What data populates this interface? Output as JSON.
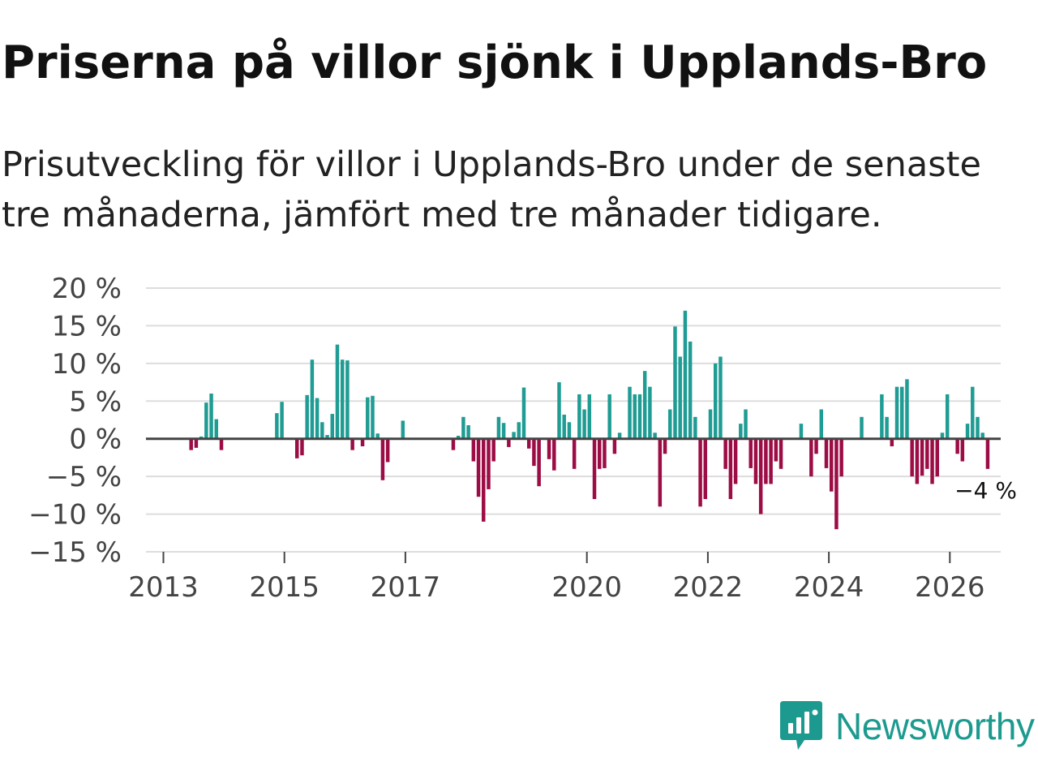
{
  "title": "Priserna på villor sjönk i Upplands-Bro",
  "subtitle": "Prisutveckling för villor i Upplands-Bro under de senaste tre månaderna, jämfört med tre månader tidigare.",
  "brand": {
    "name": "Newsworthy",
    "icon": "newsworthy-logo-icon",
    "color": "#1d9a8f"
  },
  "colors": {
    "positive": "#1f9c93",
    "negative": "#9c0c45",
    "grid": "#dddddd",
    "zero_line": "#444444"
  },
  "chart_data": {
    "type": "bar",
    "title": "Priserna på villor sjönk i Upplands-Bro",
    "xlabel": "",
    "ylabel": "",
    "ylim": [
      -15,
      20
    ],
    "yticks": [
      20,
      15,
      10,
      5,
      0,
      -5,
      -10,
      -15
    ],
    "ytick_labels": [
      "20 %",
      "15 %",
      "10 %",
      "5 %",
      "0 %",
      "−5 %",
      "−10 %",
      "−15 %"
    ],
    "xticks": [
      2013,
      2015,
      2017,
      2020,
      2022,
      2024,
      2026
    ],
    "xtick_labels": [
      "2013",
      "2015",
      "2017",
      "2020",
      "2022",
      "2024",
      "2026"
    ],
    "grid": true,
    "start": {
      "year": 2013,
      "month": 1
    },
    "values": [
      null,
      null,
      null,
      null,
      null,
      -1.5,
      -1.2,
      0.3,
      4.8,
      6.0,
      2.6,
      -1.5,
      null,
      null,
      null,
      null,
      null,
      null,
      null,
      null,
      null,
      null,
      3.4,
      4.9,
      null,
      null,
      -2.6,
      -2.2,
      5.8,
      10.5,
      5.4,
      2.2,
      0.5,
      3.3,
      12.5,
      10.5,
      10.4,
      -1.5,
      null,
      -1.0,
      5.5,
      5.7,
      0.7,
      -5.5,
      -3.1,
      null,
      null,
      2.4,
      null,
      null,
      null,
      null,
      null,
      null,
      null,
      null,
      null,
      -1.5,
      0.4,
      2.9,
      1.8,
      -3.0,
      -7.7,
      -11.0,
      -6.7,
      -3.0,
      2.9,
      2.1,
      -1.1,
      0.9,
      2.2,
      6.8,
      -1.3,
      -3.6,
      -6.3,
      null,
      -2.7,
      -4.2,
      7.5,
      3.2,
      2.2,
      -4.0,
      5.9,
      3.9,
      5.9,
      -8.0,
      -4.0,
      -3.9,
      5.9,
      -2.0,
      0.8,
      null,
      6.9,
      5.9,
      5.9,
      9.0,
      6.9,
      0.8,
      -9.0,
      -2.0,
      3.9,
      14.9,
      10.9,
      17.0,
      12.9,
      2.9,
      -9.0,
      -8.0,
      3.9,
      10.0,
      10.9,
      -4.0,
      -8.0,
      -6.0,
      2.0,
      3.9,
      -3.9,
      -6.0,
      -10.0,
      -6.0,
      -6.0,
      -3.0,
      -4.0,
      null,
      null,
      null,
      2.0,
      null,
      -5.0,
      -2.0,
      3.9,
      -3.9,
      -7.0,
      -12.0,
      -5.0,
      null,
      null,
      null,
      2.9,
      null,
      null,
      null,
      5.9,
      2.9,
      -1.0,
      6.9,
      6.9,
      7.9,
      -5.0,
      -6.0,
      -4.9,
      -4.0,
      -6.0,
      -5.0,
      0.8,
      5.9,
      null,
      -2.0,
      -3.0,
      2.0,
      6.9,
      2.9,
      0.8,
      -4.0
    ],
    "annotations": [
      {
        "text": "−4 %",
        "point": "last"
      }
    ]
  }
}
